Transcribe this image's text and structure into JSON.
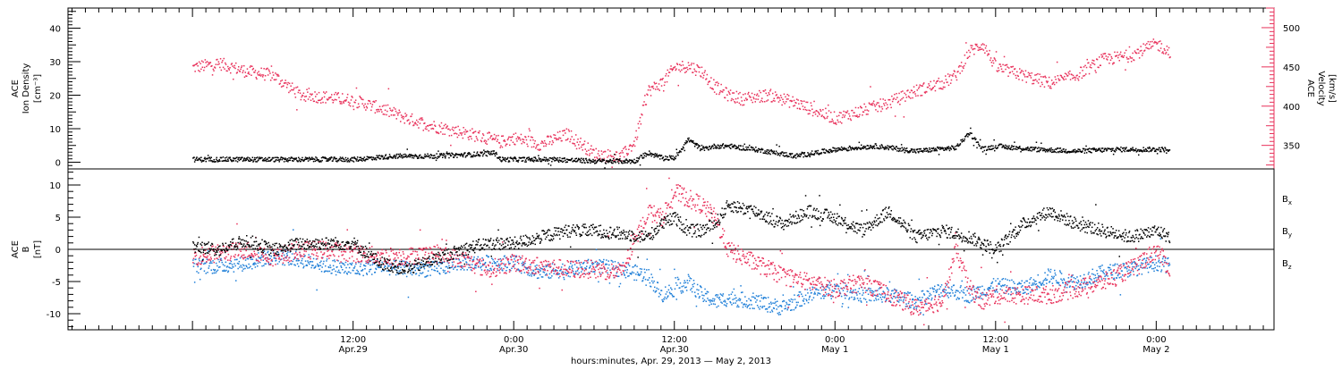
{
  "chart_data": [
    {
      "type": "scatter",
      "title": "",
      "ylabel_left": [
        "ACE",
        "Ion Density",
        "[cm⁻³]"
      ],
      "ylabel_right": [
        "ACE",
        "Velocity",
        "[km/s]"
      ],
      "left_ticks": [
        "0",
        "10",
        "20",
        "30",
        "40"
      ],
      "right_ticks": [
        "350",
        "400",
        "450",
        "500"
      ],
      "ylim_left": [
        -2,
        46
      ],
      "ylim_right": [
        320,
        525
      ],
      "colors": {
        "density": "#000000",
        "velocity": "#e8305a"
      },
      "series": [
        {
          "axis": "left",
          "hours": [
            0,
            3,
            6,
            9,
            12,
            15,
            18,
            21,
            22.5,
            23,
            24,
            27,
            30,
            33,
            34,
            35,
            36,
            37,
            38,
            39,
            40,
            42,
            45,
            48,
            51,
            54,
            57,
            58,
            59,
            60,
            63,
            66,
            69,
            72,
            73
          ],
          "values": [
            1,
            1,
            1,
            1,
            1,
            2,
            2,
            2.5,
            3,
            1,
            1,
            1,
            0.5,
            0.5,
            3,
            1.5,
            1.5,
            7,
            4,
            5,
            5,
            4,
            2,
            4,
            5,
            3.5,
            4.5,
            9,
            4,
            5,
            4,
            3.5,
            4,
            4,
            4
          ]
        },
        {
          "axis": "right",
          "hours": [
            0,
            2,
            4,
            6,
            8,
            10,
            12,
            14,
            16,
            18,
            20,
            22,
            23,
            24,
            26,
            28,
            30,
            32,
            33,
            34,
            35,
            36,
            37,
            38,
            39,
            40,
            41,
            43,
            45,
            48,
            50,
            52,
            54,
            56,
            57,
            58,
            59,
            60,
            62,
            64,
            66,
            68,
            70,
            72,
            73
          ],
          "values": [
            450,
            455,
            445,
            440,
            415,
            412,
            408,
            398,
            385,
            375,
            368,
            360,
            355,
            360,
            352,
            365,
            340,
            336,
            355,
            420,
            430,
            450,
            452,
            445,
            425,
            415,
            410,
            415,
            405,
            385,
            395,
            405,
            420,
            430,
            440,
            470,
            480,
            450,
            440,
            430,
            440,
            460,
            465,
            480,
            470
          ]
        }
      ]
    },
    {
      "type": "scatter",
      "title": "",
      "ylabel": [
        "ACE",
        "B",
        "[nT]"
      ],
      "ticks": [
        "-10",
        "-5",
        "0",
        "5",
        "10"
      ],
      "ylim": [
        -12.5,
        12.5
      ],
      "xlabel": "hours:minutes, Apr. 29, 2013 — May  2, 2013",
      "x_range_hours": [
        -9.3,
        80.8
      ],
      "x_ticks": [
        {
          "hour": 12,
          "time": "12:00",
          "date": "Apr.29"
        },
        {
          "hour": 24,
          "time": "0:00",
          "date": "Apr.30"
        },
        {
          "hour": 36,
          "time": "12:00",
          "date": "Apr.30"
        },
        {
          "hour": 48,
          "time": "0:00",
          "date": "May 1"
        },
        {
          "hour": 60,
          "time": "12:00",
          "date": "May 1"
        },
        {
          "hour": 72,
          "time": "0:00",
          "date": "May 2"
        }
      ],
      "series": [
        {
          "name": "Bx",
          "label_main": "B",
          "label_sub": "x",
          "color": "#000000",
          "hours": [
            0,
            2,
            4,
            6,
            8,
            10,
            12,
            14,
            16,
            18,
            20,
            22,
            24,
            26,
            28,
            30,
            32,
            34,
            35,
            36,
            37,
            38,
            39,
            40,
            42,
            44,
            46,
            48,
            50,
            52,
            54,
            56,
            58,
            60,
            62,
            64,
            66,
            68,
            70,
            72,
            73
          ],
          "values": [
            0.5,
            0,
            1.5,
            0,
            1,
            1,
            1,
            -2,
            -3,
            -1.5,
            0,
            1,
            1,
            2,
            3,
            3,
            2.5,
            2,
            4,
            5,
            3,
            3,
            4,
            7,
            6,
            4,
            6,
            5,
            3,
            6,
            2,
            3,
            2,
            0,
            4,
            6,
            4,
            3,
            2,
            3,
            2
          ]
        },
        {
          "name": "By",
          "label_main": "B",
          "label_sub": "y",
          "color": "#1f7fd8",
          "hours": [
            0,
            2,
            4,
            6,
            8,
            10,
            12,
            14,
            16,
            18,
            20,
            22,
            24,
            26,
            28,
            30,
            32,
            34,
            35,
            36,
            37,
            38,
            39,
            40,
            42,
            44,
            46,
            48,
            50,
            52,
            54,
            56,
            58,
            60,
            62,
            64,
            66,
            68,
            70,
            72,
            73
          ],
          "values": [
            -2.5,
            -2.5,
            -2,
            -1,
            -1.5,
            -2.5,
            -3,
            -2.5,
            -3,
            -3,
            -2,
            -2,
            -2,
            -3.5,
            -3,
            -2.5,
            -3,
            -4,
            -7,
            -6,
            -5,
            -7,
            -8,
            -7.5,
            -8,
            -9,
            -7,
            -6,
            -7,
            -7,
            -8,
            -6,
            -7,
            -5.5,
            -6,
            -4,
            -5,
            -3.5,
            -3,
            -2,
            -2.5
          ]
        },
        {
          "name": "Bz",
          "label_main": "B",
          "label_sub": "z",
          "color": "#e8305a",
          "hours": [
            0,
            2,
            4,
            6,
            8,
            10,
            12,
            14,
            16,
            18,
            20,
            22,
            24,
            26,
            28,
            30,
            32,
            34,
            35,
            36,
            37,
            38,
            39,
            40,
            42,
            44,
            46,
            48,
            50,
            52,
            54,
            56,
            57,
            58,
            59,
            60,
            62,
            64,
            66,
            68,
            70,
            72,
            73
          ],
          "values": [
            -1,
            -0.5,
            0,
            -1,
            0,
            0,
            -0.5,
            -1,
            -1,
            -0.5,
            -1.5,
            -3,
            -2,
            -2.5,
            -3,
            -3,
            -3.5,
            6,
            5,
            9,
            8,
            7,
            5,
            0,
            -2,
            -4,
            -5,
            -6,
            -5,
            -7,
            -9,
            -8,
            0,
            -6,
            -8,
            -7,
            -7,
            -7,
            -6,
            -5,
            -3,
            0,
            -3
          ]
        }
      ]
    }
  ]
}
